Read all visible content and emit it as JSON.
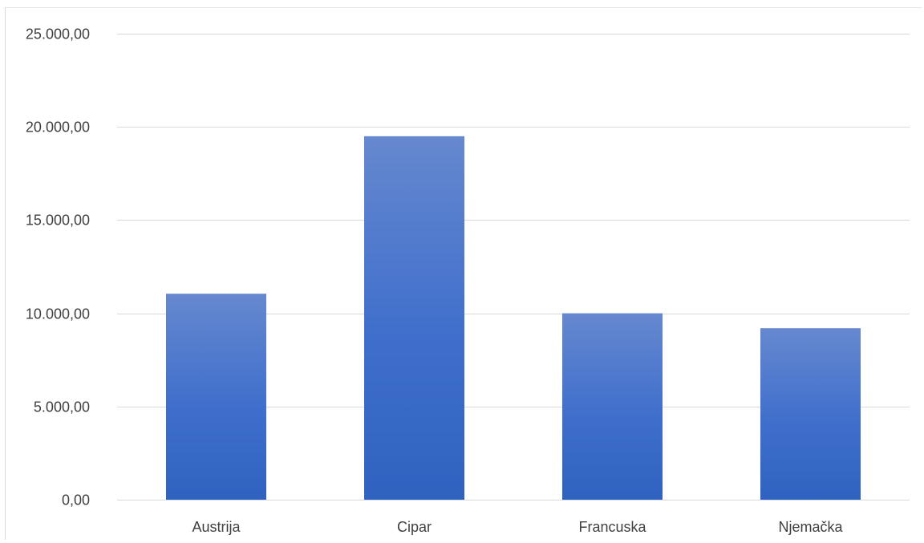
{
  "chart_data": {
    "type": "bar",
    "title": "",
    "xlabel": "",
    "ylabel": "",
    "categories": [
      "Austrija",
      "Cipar",
      "Francuska",
      "Njemačka"
    ],
    "values": [
      11050,
      19500,
      10000,
      9200
    ],
    "ylim": [
      0,
      25000
    ],
    "yticks": [
      0,
      5000,
      10000,
      15000,
      20000,
      25000
    ],
    "ytick_labels": [
      "0,00",
      "5.000,00",
      "10.000,00",
      "15.000,00",
      "20.000,00",
      "25.000,00"
    ],
    "grid": true,
    "legend": "none",
    "bar_color_top": "#6688cf",
    "bar_color_bottom": "#2f62c0"
  }
}
